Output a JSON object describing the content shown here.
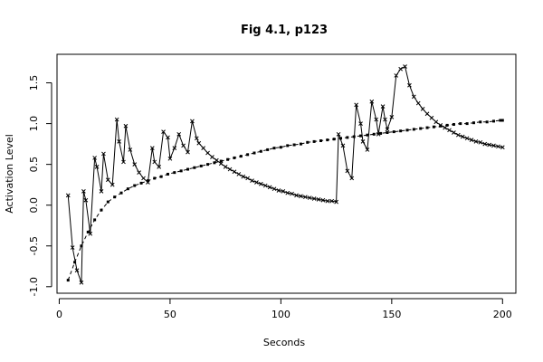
{
  "chart_data": {
    "type": "line",
    "title": "Fig 4.1, p123",
    "xlabel": "Seconds",
    "ylabel": "Activation Level",
    "xlim": [
      -1,
      206
    ],
    "ylim": [
      -1.08,
      1.85
    ],
    "x_ticks": [
      0,
      50,
      100,
      150,
      200
    ],
    "x_tick_labels": [
      "0",
      "50",
      "100",
      "150",
      "200"
    ],
    "y_ticks": [
      -1.0,
      -0.5,
      0.0,
      0.5,
      1.0,
      1.5
    ],
    "y_tick_labels": [
      "-1.0",
      "-0.5",
      "0.0",
      "0.5",
      "1.0",
      "1.5"
    ],
    "grid": false,
    "legend": false,
    "colors": {
      "line": "#000000",
      "background": "#ffffff"
    },
    "series": [
      {
        "style": "line-with-x-markers",
        "x": [
          4,
          6,
          8,
          10,
          11,
          12,
          14,
          16,
          17,
          19,
          20,
          22,
          24,
          26,
          27,
          29,
          30,
          32,
          34,
          36,
          38,
          40,
          42,
          43,
          45,
          47,
          49,
          50,
          52,
          54,
          56,
          58,
          60,
          62,
          63,
          65,
          67,
          69,
          71,
          73,
          75,
          77,
          79,
          81,
          83,
          85,
          87,
          89,
          91,
          93,
          95,
          97,
          99,
          101,
          103,
          105,
          107,
          109,
          111,
          113,
          115,
          117,
          119,
          121,
          123,
          125,
          126,
          128,
          130,
          132,
          134,
          136,
          137,
          139,
          141,
          143,
          144,
          146,
          147,
          148,
          150,
          152,
          154,
          156,
          158,
          160,
          162,
          164,
          166,
          168,
          170,
          172,
          174,
          176,
          178,
          180,
          182,
          184,
          186,
          188,
          190,
          192,
          194,
          196,
          198,
          200
        ],
        "y": [
          0.12,
          -0.52,
          -0.8,
          -0.95,
          0.17,
          0.06,
          -0.35,
          0.58,
          0.47,
          0.17,
          0.63,
          0.31,
          0.25,
          1.05,
          0.78,
          0.53,
          0.97,
          0.68,
          0.5,
          0.4,
          0.33,
          0.28,
          0.7,
          0.53,
          0.47,
          0.9,
          0.83,
          0.57,
          0.7,
          0.87,
          0.73,
          0.65,
          1.03,
          0.82,
          0.76,
          0.7,
          0.64,
          0.59,
          0.55,
          0.51,
          0.47,
          0.44,
          0.41,
          0.38,
          0.35,
          0.33,
          0.3,
          0.28,
          0.26,
          0.24,
          0.22,
          0.2,
          0.18,
          0.17,
          0.15,
          0.14,
          0.12,
          0.11,
          0.1,
          0.09,
          0.08,
          0.07,
          0.06,
          0.05,
          0.05,
          0.04,
          0.87,
          0.73,
          0.42,
          0.33,
          1.23,
          1.0,
          0.78,
          0.68,
          1.27,
          1.05,
          0.87,
          1.21,
          1.05,
          0.93,
          1.08,
          1.59,
          1.67,
          1.7,
          1.47,
          1.33,
          1.25,
          1.18,
          1.12,
          1.07,
          1.02,
          0.98,
          0.95,
          0.92,
          0.89,
          0.86,
          0.84,
          0.82,
          0.8,
          0.78,
          0.77,
          0.75,
          0.74,
          0.73,
          0.72,
          0.71
        ]
      },
      {
        "style": "dashed-with-square-markers",
        "x": [
          4,
          7,
          10,
          13,
          16,
          19,
          22,
          25,
          28,
          31,
          34,
          37,
          40,
          43,
          46,
          49,
          52,
          55,
          58,
          61,
          64,
          67,
          70,
          73,
          76,
          79,
          82,
          85,
          88,
          91,
          94,
          97,
          100,
          103,
          106,
          109,
          112,
          115,
          118,
          121,
          124,
          127,
          130,
          133,
          136,
          139,
          142,
          145,
          148,
          151,
          154,
          157,
          160,
          163,
          166,
          169,
          172,
          175,
          178,
          181,
          184,
          187,
          190,
          193,
          196,
          199,
          200
        ],
        "y": [
          -0.92,
          -0.7,
          -0.5,
          -0.33,
          -0.18,
          -0.06,
          0.04,
          0.1,
          0.15,
          0.2,
          0.24,
          0.27,
          0.3,
          0.33,
          0.35,
          0.38,
          0.4,
          0.42,
          0.44,
          0.46,
          0.48,
          0.5,
          0.52,
          0.54,
          0.56,
          0.58,
          0.6,
          0.62,
          0.64,
          0.66,
          0.68,
          0.7,
          0.71,
          0.73,
          0.74,
          0.75,
          0.77,
          0.78,
          0.79,
          0.8,
          0.81,
          0.82,
          0.83,
          0.84,
          0.85,
          0.86,
          0.87,
          0.88,
          0.89,
          0.9,
          0.91,
          0.92,
          0.93,
          0.94,
          0.95,
          0.96,
          0.97,
          0.98,
          0.99,
          1.0,
          1.0,
          1.01,
          1.02,
          1.02,
          1.03,
          1.04,
          1.04
        ]
      }
    ]
  }
}
